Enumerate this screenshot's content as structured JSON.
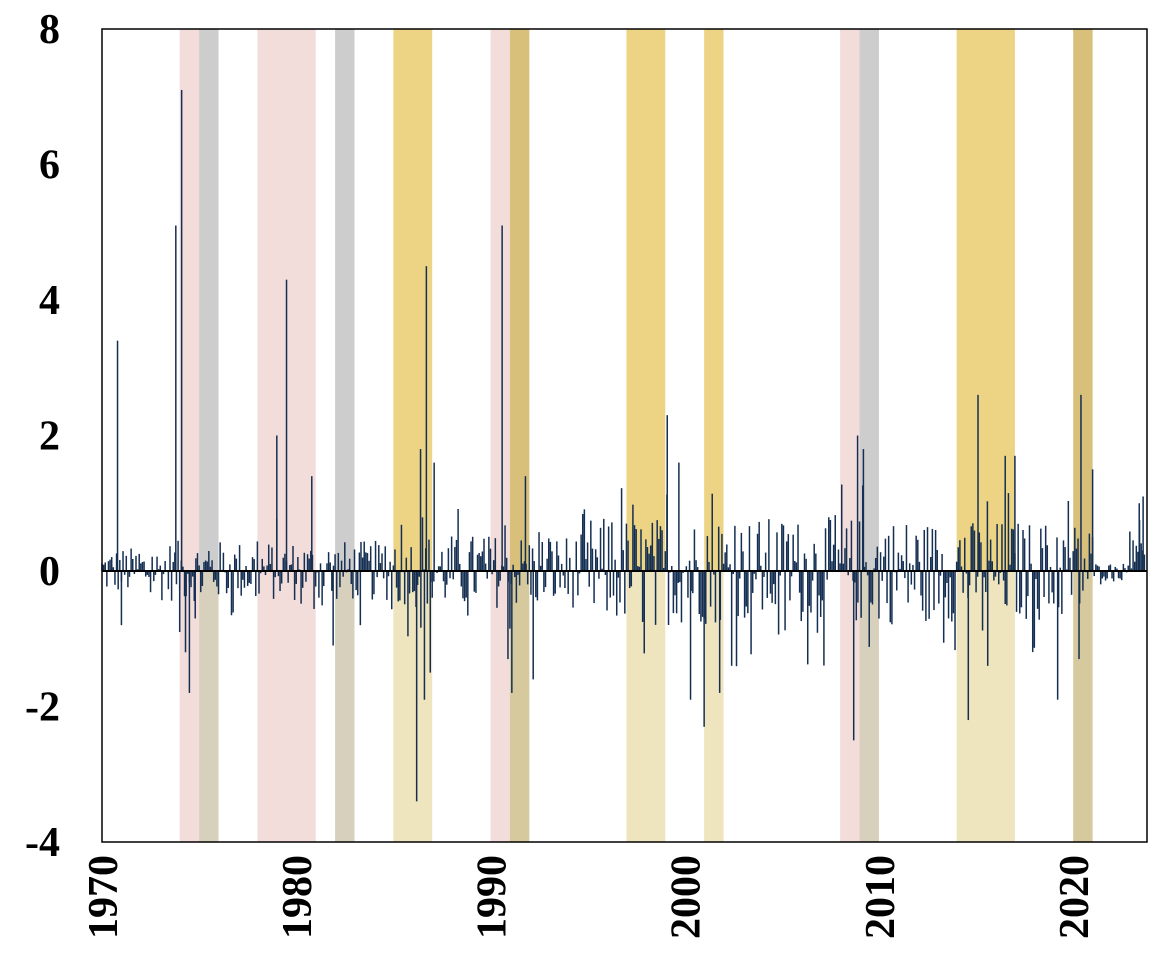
{
  "chart_data": {
    "type": "bar",
    "title": "",
    "xlabel": "",
    "ylabel": "",
    "xlim": [
      1970,
      2023.8
    ],
    "ylim": [
      -4,
      8
    ],
    "x_ticks": [
      "1970",
      "1980",
      "1990",
      "2000",
      "2010",
      "2020"
    ],
    "y_ticks": [
      "8",
      "6",
      "4",
      "2",
      "0",
      "-2",
      "-4"
    ],
    "grid": false,
    "legend": "none",
    "colors": {
      "bars": "#152f52",
      "zero_line": "#000000",
      "shade_pink": "#f3dddb",
      "shade_gray": "#cdcdcd",
      "shade_gold": "#ecd484",
      "shade_gold_light": "#eee4bd",
      "shade_gray_light": "#d6d0bc",
      "shade_gold_over_gray": "#d8bf7a",
      "shade_darkgold_light": "#d6c99d"
    },
    "shaded_periods": [
      {
        "kind": "pink",
        "start": 1974.0,
        "end": 1975.0
      },
      {
        "kind": "gray",
        "start": 1975.0,
        "end": 1976.0
      },
      {
        "kind": "pink",
        "start": 1978.0,
        "end": 1981.0
      },
      {
        "kind": "gray",
        "start": 1982.0,
        "end": 1983.0
      },
      {
        "kind": "gold",
        "start": 1985.0,
        "end": 1987.0
      },
      {
        "kind": "pink",
        "start": 1990.0,
        "end": 1991.0
      },
      {
        "kind": "goldgray",
        "start": 1991.0,
        "end": 1992.0
      },
      {
        "kind": "gold",
        "start": 1997.0,
        "end": 1999.0
      },
      {
        "kind": "gold",
        "start": 2001.0,
        "end": 2002.0
      },
      {
        "kind": "pink",
        "start": 2008.0,
        "end": 2009.0
      },
      {
        "kind": "gray",
        "start": 2009.0,
        "end": 2010.0
      },
      {
        "kind": "gold",
        "start": 2014.0,
        "end": 2017.0
      },
      {
        "kind": "goldgray",
        "start": 2020.0,
        "end": 2021.0
      }
    ],
    "spikes": [
      {
        "x": 1970.8,
        "y": 3.4
      },
      {
        "x": 1971.0,
        "y": -0.8
      },
      {
        "x": 1973.8,
        "y": 5.1
      },
      {
        "x": 1974.0,
        "y": -0.9
      },
      {
        "x": 1974.1,
        "y": 7.1
      },
      {
        "x": 1974.3,
        "y": -1.2
      },
      {
        "x": 1974.5,
        "y": -1.8
      },
      {
        "x": 1974.8,
        "y": -0.7
      },
      {
        "x": 1979.0,
        "y": 2.0
      },
      {
        "x": 1979.5,
        "y": 4.3
      },
      {
        "x": 1980.8,
        "y": 1.4
      },
      {
        "x": 1981.9,
        "y": -1.1
      },
      {
        "x": 1983.3,
        "y": -0.8
      },
      {
        "x": 1986.2,
        "y": -3.4
      },
      {
        "x": 1986.4,
        "y": 1.8
      },
      {
        "x": 1986.6,
        "y": -1.9
      },
      {
        "x": 1986.7,
        "y": 4.5
      },
      {
        "x": 1986.9,
        "y": -1.5
      },
      {
        "x": 1987.1,
        "y": 1.6
      },
      {
        "x": 1990.6,
        "y": 5.1
      },
      {
        "x": 1990.9,
        "y": -1.3
      },
      {
        "x": 1991.1,
        "y": -1.8
      },
      {
        "x": 1991.8,
        "y": 1.4
      },
      {
        "x": 1992.2,
        "y": -1.6
      },
      {
        "x": 1999.1,
        "y": 2.3
      },
      {
        "x": 1999.7,
        "y": 1.6
      },
      {
        "x": 2000.3,
        "y": -1.9
      },
      {
        "x": 2001.0,
        "y": -2.3
      },
      {
        "x": 2001.8,
        "y": -1.8
      },
      {
        "x": 2008.7,
        "y": -2.5
      },
      {
        "x": 2008.9,
        "y": 2.0
      },
      {
        "x": 2009.2,
        "y": 1.8
      },
      {
        "x": 2014.6,
        "y": -2.2
      },
      {
        "x": 2015.1,
        "y": 2.6
      },
      {
        "x": 2015.6,
        "y": -1.4
      },
      {
        "x": 2016.5,
        "y": 1.7
      },
      {
        "x": 2017.0,
        "y": 1.7
      },
      {
        "x": 2019.2,
        "y": -1.9
      },
      {
        "x": 2020.4,
        "y": 2.6
      },
      {
        "x": 2020.3,
        "y": -1.3
      },
      {
        "x": 2021.0,
        "y": 1.5
      },
      {
        "x": 2023.4,
        "y": 1.0
      },
      {
        "x": 2023.6,
        "y": 1.1
      }
    ]
  }
}
